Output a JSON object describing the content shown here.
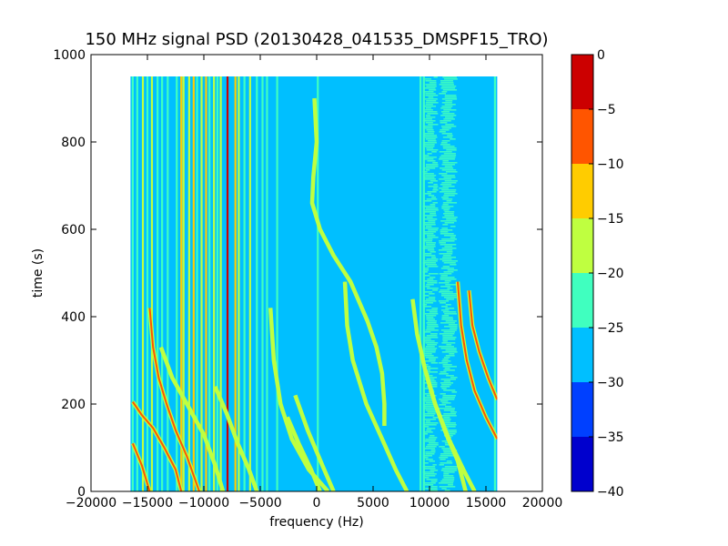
{
  "chart_data": {
    "type": "heatmap",
    "title": "150 MHz signal PSD (20130428_041535_DMSPF15_TRO)",
    "xlabel": "frequency (Hz)",
    "ylabel": "time (s)",
    "xlim": [
      -20000,
      20000
    ],
    "ylim": [
      0,
      1000
    ],
    "xticks": [
      -20000,
      -15000,
      -10000,
      -5000,
      0,
      5000,
      10000,
      15000,
      20000
    ],
    "xtick_labels": [
      "−20000",
      "−15000",
      "−10000",
      "−5000",
      "0",
      "5000",
      "10000",
      "15000",
      "20000"
    ],
    "yticks": [
      0,
      200,
      400,
      600,
      800,
      1000
    ],
    "ytick_labels": [
      "0",
      "200",
      "400",
      "600",
      "800",
      "1000"
    ],
    "data_extent": {
      "freq": [
        -16500,
        16000
      ],
      "time": [
        0,
        950
      ]
    },
    "background_level": -27.5,
    "colorbar": {
      "levels": [
        -40,
        -35,
        -30,
        -25,
        -20,
        -15,
        -10,
        -5,
        0
      ],
      "tick_labels": [
        "−40",
        "−35",
        "−30",
        "−25",
        "−20",
        "−15",
        "−10",
        "−5",
        "0"
      ],
      "colors": [
        "#0000cd",
        "#0040ff",
        "#00bfff",
        "#40ffbf",
        "#bfff40",
        "#ffcc00",
        "#ff5500",
        "#cc0000"
      ]
    },
    "vertical_lines": [
      {
        "freq": -16300,
        "level": -22
      },
      {
        "freq": -15900,
        "level": -22
      },
      {
        "freq": -15400,
        "level": -17
      },
      {
        "freq": -15000,
        "level": -22
      },
      {
        "freq": -14600,
        "level": -17
      },
      {
        "freq": -14100,
        "level": -22
      },
      {
        "freq": -13700,
        "level": -22
      },
      {
        "freq": -13200,
        "level": -22
      },
      {
        "freq": -12400,
        "level": -22
      },
      {
        "freq": -12000,
        "level": -12
      },
      {
        "freq": -11800,
        "level": -17
      },
      {
        "freq": -11300,
        "level": -17
      },
      {
        "freq": -10900,
        "level": -12
      },
      {
        "freq": -10600,
        "level": -22
      },
      {
        "freq": -10200,
        "level": -17
      },
      {
        "freq": -9800,
        "level": -12
      },
      {
        "freq": -9500,
        "level": -22
      },
      {
        "freq": -9100,
        "level": -17
      },
      {
        "freq": -8800,
        "level": -22
      },
      {
        "freq": -8500,
        "level": -17
      },
      {
        "freq": -7900,
        "level": -2
      },
      {
        "freq": -7200,
        "level": -12
      },
      {
        "freq": -6900,
        "level": -17
      },
      {
        "freq": -6400,
        "level": -22
      },
      {
        "freq": -5900,
        "level": -17
      },
      {
        "freq": -5300,
        "level": -22
      },
      {
        "freq": -4800,
        "level": -22
      },
      {
        "freq": -4400,
        "level": -22
      },
      {
        "freq": -3500,
        "level": -22
      },
      {
        "freq": 100,
        "level": -22
      },
      {
        "freq": 9200,
        "level": -22
      },
      {
        "freq": 9500,
        "level": -22
      },
      {
        "freq": 15800,
        "level": -22
      }
    ],
    "tracks": [
      {
        "level": -7,
        "points": [
          [
            -16300,
            205
          ],
          [
            -15500,
            175
          ],
          [
            -14500,
            145
          ],
          [
            -13500,
            100
          ],
          [
            -12500,
            50
          ],
          [
            -12000,
            0
          ]
        ]
      },
      {
        "level": -7,
        "points": [
          [
            -16300,
            110
          ],
          [
            -15500,
            60
          ],
          [
            -14800,
            0
          ]
        ]
      },
      {
        "level": -7,
        "points": [
          [
            -14800,
            420
          ],
          [
            -14500,
            330
          ],
          [
            -14000,
            260
          ],
          [
            -13300,
            200
          ],
          [
            -12500,
            140
          ],
          [
            -11500,
            80
          ],
          [
            -10400,
            0
          ]
        ]
      },
      {
        "level": -17,
        "points": [
          [
            -13800,
            330
          ],
          [
            -12800,
            260
          ],
          [
            -11500,
            200
          ],
          [
            -10000,
            130
          ],
          [
            -9000,
            60
          ],
          [
            -8300,
            0
          ]
        ]
      },
      {
        "level": -17,
        "points": [
          [
            -9000,
            240
          ],
          [
            -8000,
            180
          ],
          [
            -7000,
            110
          ],
          [
            -6000,
            50
          ],
          [
            -5300,
            0
          ]
        ]
      },
      {
        "level": -17,
        "points": [
          [
            -4100,
            420
          ],
          [
            -3800,
            300
          ],
          [
            -3200,
            200
          ],
          [
            -2200,
            120
          ],
          [
            -700,
            50
          ],
          [
            1000,
            0
          ]
        ]
      },
      {
        "level": -17,
        "points": [
          [
            -1900,
            220
          ],
          [
            -800,
            140
          ],
          [
            500,
            60
          ],
          [
            1500,
            0
          ]
        ]
      },
      {
        "level": -17,
        "points": [
          [
            -2600,
            170
          ],
          [
            -1600,
            110
          ],
          [
            -500,
            50
          ],
          [
            300,
            0
          ]
        ]
      },
      {
        "level": -17,
        "points": [
          [
            -200,
            900
          ],
          [
            0,
            800
          ],
          [
            -300,
            720
          ],
          [
            -400,
            660
          ],
          [
            300,
            600
          ],
          [
            1500,
            540
          ],
          [
            3000,
            480
          ],
          [
            4500,
            390
          ],
          [
            5300,
            330
          ],
          [
            5800,
            270
          ],
          [
            6000,
            200
          ],
          [
            6000,
            150
          ]
        ]
      },
      {
        "level": -17,
        "points": [
          [
            2500,
            480
          ],
          [
            2700,
            380
          ],
          [
            3200,
            300
          ],
          [
            4400,
            200
          ],
          [
            5800,
            120
          ],
          [
            7000,
            50
          ],
          [
            8000,
            0
          ]
        ]
      },
      {
        "level": -17,
        "points": [
          [
            8500,
            440
          ],
          [
            8900,
            360
          ],
          [
            9600,
            280
          ],
          [
            10500,
            200
          ],
          [
            11700,
            120
          ],
          [
            13000,
            50
          ],
          [
            14000,
            0
          ]
        ]
      },
      {
        "level": -17,
        "points": [
          [
            9800,
            260
          ],
          [
            10500,
            200
          ],
          [
            11500,
            130
          ],
          [
            12500,
            70
          ],
          [
            13200,
            0
          ]
        ]
      },
      {
        "level": -7,
        "points": [
          [
            12500,
            480
          ],
          [
            12800,
            380
          ],
          [
            13300,
            300
          ],
          [
            14000,
            230
          ],
          [
            15000,
            170
          ],
          [
            16000,
            120
          ]
        ]
      },
      {
        "level": -7,
        "points": [
          [
            13500,
            460
          ],
          [
            13800,
            380
          ],
          [
            14400,
            320
          ],
          [
            15200,
            260
          ],
          [
            16000,
            210
          ]
        ]
      }
    ],
    "noise_bands": [
      {
        "freq": [
          9400,
          10800
        ],
        "level": -22
      },
      {
        "freq": [
          10800,
          12500
        ],
        "level": -22
      }
    ]
  }
}
